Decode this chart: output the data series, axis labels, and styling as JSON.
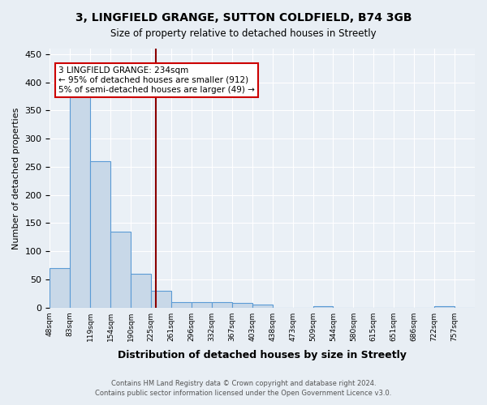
{
  "title_line1": "3, LINGFIELD GRANGE, SUTTON COLDFIELD, B74 3GB",
  "title_line2": "Size of property relative to detached houses in Streetly",
  "xlabel": "Distribution of detached houses by size in Streetly",
  "ylabel": "Number of detached properties",
  "footer_line1": "Contains HM Land Registry data © Crown copyright and database right 2024.",
  "footer_line2": "Contains public sector information licensed under the Open Government Licence v3.0.",
  "bin_labels": [
    "48sqm",
    "83sqm",
    "119sqm",
    "154sqm",
    "190sqm",
    "225sqm",
    "261sqm",
    "296sqm",
    "332sqm",
    "367sqm",
    "403sqm",
    "438sqm",
    "473sqm",
    "509sqm",
    "544sqm",
    "580sqm",
    "615sqm",
    "651sqm",
    "686sqm",
    "722sqm",
    "757sqm"
  ],
  "counts": [
    70,
    375,
    260,
    135,
    60,
    30,
    10,
    10,
    10,
    8,
    5,
    0,
    0,
    3,
    0,
    0,
    0,
    0,
    0,
    3,
    0
  ],
  "bar_color": "#c8d8e8",
  "bar_edge_color": "#5b9bd5",
  "vline_pos": 5.25,
  "vline_color": "#8b0000",
  "annotation_text": "3 LINGFIELD GRANGE: 234sqm\n← 95% of detached houses are smaller (912)\n5% of semi-detached houses are larger (49) →",
  "annotation_box_color": "white",
  "annotation_box_edge_color": "#cc0000",
  "ylim": [
    0,
    460
  ],
  "yticks": [
    0,
    50,
    100,
    150,
    200,
    250,
    300,
    350,
    400,
    450
  ],
  "background_color": "#e8eef4",
  "plot_background": "#eaf0f6"
}
